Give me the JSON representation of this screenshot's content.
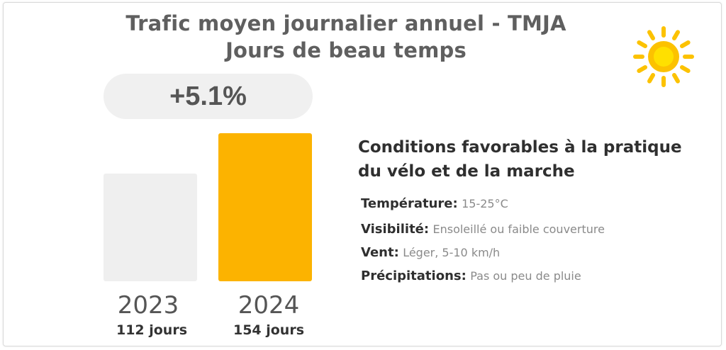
{
  "title_line1": "Trafic moyen journalier annuel - TMJA",
  "title_line2": "Jours de beau temps",
  "change_label": "+5.1%",
  "colors": {
    "bar_2023": "#efefef",
    "bar_2024": "#fcb300",
    "sun": "#fcc200"
  },
  "icons": {
    "weather": "sun-icon"
  },
  "chart_data": {
    "type": "bar",
    "categories": [
      "2023",
      "2024"
    ],
    "values": [
      112,
      154
    ],
    "value_labels": [
      "112 jours",
      "154 jours"
    ],
    "ylim": [
      0,
      154
    ],
    "grid": false
  },
  "conditions": {
    "heading": "Conditions favorables à la pratique du vélo et de la marche",
    "items": [
      {
        "label": "Température:",
        "value": "15-25°C"
      },
      {
        "label": "Visibilité:",
        "value": "Ensoleillé ou faible couverture"
      },
      {
        "label": "Vent:",
        "value": "Léger, 5-10 km/h"
      },
      {
        "label": "Précipitations:",
        "value": "Pas ou peu de pluie"
      }
    ]
  }
}
